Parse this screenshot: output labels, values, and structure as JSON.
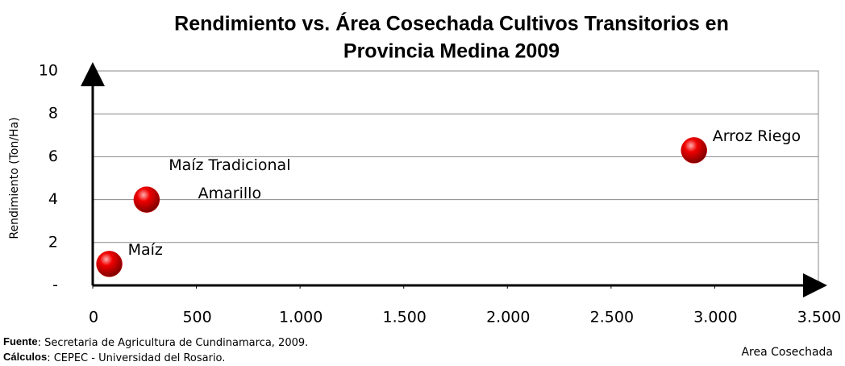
{
  "chart_data": {
    "type": "scatter",
    "title": [
      "Rendimiento vs. Área Cosechada Cultivos  Transitorios en",
      "Provincia Medina 2009"
    ],
    "x_label": "Area Cosechada",
    "y_label": "Rendimiento (Ton/Ha)",
    "x": [
      80,
      260,
      2900
    ],
    "values": [
      1.0,
      4.0,
      6.3
    ],
    "point_labels": [
      [
        "Maíz"
      ],
      [
        "Maíz Tradicional",
        "Amarillo"
      ],
      [
        "Arroz Riego"
      ]
    ],
    "color": "#e00000",
    "xlim": [
      0,
      3500
    ],
    "xticks": [
      0,
      500,
      {
        "value": 1000,
        "label": "1.000"
      },
      {
        "value": 1500,
        "label": "1.500"
      },
      {
        "value": 2000,
        "label": "2.000"
      },
      {
        "value": 2500,
        "label": "2.500"
      },
      {
        "value": 3000,
        "label": "3.000"
      },
      {
        "value": 3500,
        "label": "3.500"
      }
    ],
    "ylim": [
      0,
      10
    ],
    "yticks": [
      {
        "value": 0,
        "label": "-"
      },
      2,
      4,
      6,
      8,
      10
    ],
    "grid": true,
    "notes": [
      {
        "label": "Fuente",
        "text": ": Secretaria de Agricultura de Cundinamarca, 2009."
      },
      {
        "label": "Cálculos",
        "text": ": CEPEC - Universidad del Rosario."
      }
    ]
  }
}
